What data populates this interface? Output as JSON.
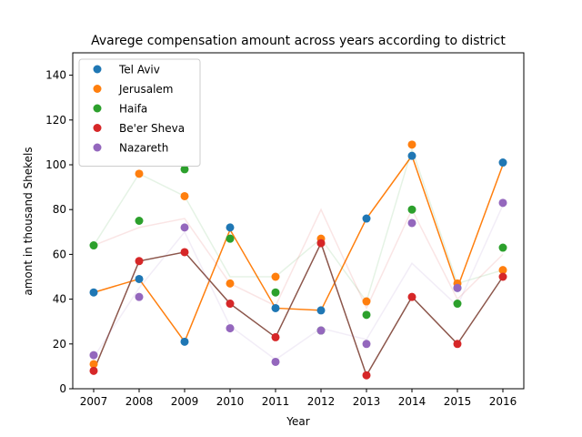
{
  "chart_data": {
    "type": "scatter",
    "title": "Avarege compensation amount across years according to district",
    "xlabel": "Year",
    "ylabel": "amont in thousand Shekels",
    "categories": [
      "2007",
      "2008",
      "2009",
      "2010",
      "2011",
      "2012",
      "2013",
      "2014",
      "2015",
      "2016"
    ],
    "ylim": [
      0,
      150
    ],
    "yticks": [
      0,
      20,
      40,
      60,
      80,
      100,
      120,
      140
    ],
    "legend_position": "top-left",
    "series": [
      {
        "name": "Tel Aviv",
        "color": "#1f77b4",
        "values": [
          43,
          49,
          21,
          72,
          36,
          35,
          76,
          104,
          45,
          101
        ]
      },
      {
        "name": "Jerusalem",
        "color": "#ff7f0e",
        "values": [
          11,
          96,
          86,
          47,
          50,
          67,
          39,
          109,
          47,
          53
        ]
      },
      {
        "name": "Haifa",
        "color": "#2ca02c",
        "values": [
          64,
          75,
          98,
          67,
          43,
          26,
          33,
          80,
          38,
          63
        ]
      },
      {
        "name": "Be'er Sheva",
        "color": "#d62728",
        "values": [
          8,
          57,
          61,
          38,
          23,
          65,
          6,
          41,
          20,
          50
        ]
      },
      {
        "name": "Nazareth",
        "color": "#9467bd",
        "values": [
          15,
          41,
          72,
          27,
          12,
          26,
          20,
          74,
          45,
          83
        ]
      }
    ],
    "trend_lines": [
      {
        "color": "#ff7f0e",
        "opacity": 1.0,
        "values": [
          43,
          49,
          21,
          71,
          36,
          35,
          76,
          104,
          45,
          100
        ]
      },
      {
        "color": "#8c564b",
        "opacity": 1.0,
        "values": [
          8,
          57,
          61,
          38,
          23,
          65,
          6,
          41,
          20,
          50
        ]
      },
      {
        "color": "#2ca02c",
        "opacity": 0.12,
        "values": [
          64,
          96,
          86,
          50,
          50,
          67,
          39,
          107,
          47,
          53
        ]
      },
      {
        "color": "#d62728",
        "opacity": 0.12,
        "values": [
          64,
          72,
          76,
          47,
          37,
          80,
          36,
          80,
          40,
          60
        ]
      },
      {
        "color": "#9467bd",
        "opacity": 0.12,
        "values": [
          14,
          45,
          70,
          28,
          13,
          27,
          22,
          56,
          37,
          82
        ]
      }
    ]
  }
}
